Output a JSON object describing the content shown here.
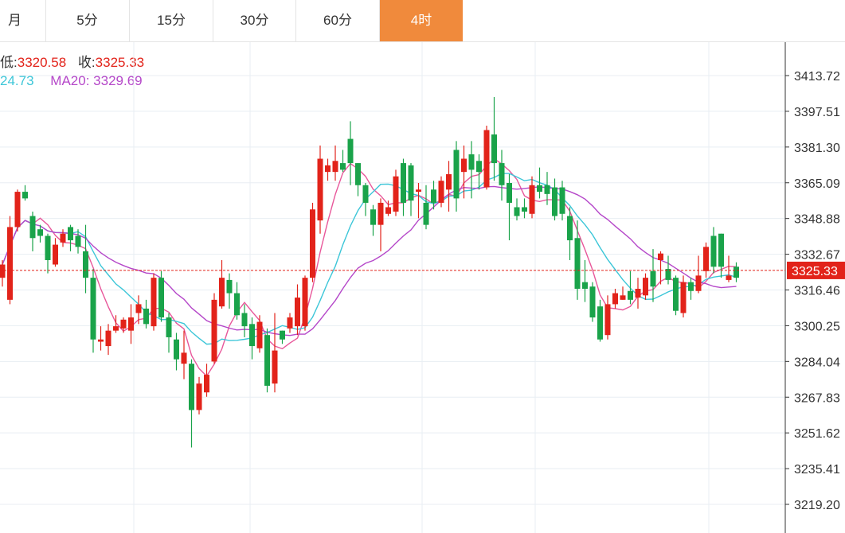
{
  "tabs": [
    {
      "label": "月",
      "active": false
    },
    {
      "label": "5分",
      "active": false
    },
    {
      "label": "15分",
      "active": false
    },
    {
      "label": "30分",
      "active": false
    },
    {
      "label": "60分",
      "active": false
    },
    {
      "label": "4时",
      "active": true
    }
  ],
  "info": {
    "low_label": "低:",
    "low_value": "3320.58",
    "close_label": "收:",
    "close_value": "3325.33",
    "ma10_value": "24.73",
    "ma20_label": "MA20:",
    "ma20_value": "3329.69"
  },
  "colors": {
    "up": "#e2231a",
    "down": "#1aa34a",
    "ma5": "#e8579a",
    "ma10": "#3cc6d8",
    "ma20": "#b547c9",
    "active_tab": "#f08a3c",
    "grid": "#e8eef3"
  },
  "chart_data": {
    "type": "candlestick",
    "y_ticks": [
      "3413.72",
      "3397.51",
      "3381.30",
      "3365.09",
      "3348.88",
      "3332.67",
      "3316.46",
      "3300.25",
      "3284.04",
      "3267.83",
      "3251.62",
      "3235.41",
      "3219.20"
    ],
    "y_range": [
      3219.2,
      3413.72
    ],
    "last_price": "3325.33",
    "candles": [
      [
        3322,
        3328,
        3318,
        3330
      ],
      [
        3312,
        3345,
        3310,
        3350
      ],
      [
        3345,
        3361,
        3343,
        3362
      ],
      [
        3361,
        3358,
        3357,
        3364
      ],
      [
        3350,
        3340,
        3334,
        3352
      ],
      [
        3344,
        3341,
        3338,
        3346
      ],
      [
        3341,
        3330,
        3324,
        3342
      ],
      [
        3328,
        3337,
        3327,
        3340
      ],
      [
        3338,
        3342,
        3336,
        3344
      ],
      [
        3345,
        3339,
        3334,
        3346
      ],
      [
        3341,
        3336,
        3333,
        3344
      ],
      [
        3334,
        3322,
        3315,
        3346
      ],
      [
        3322,
        3294,
        3288,
        3326
      ],
      [
        3293,
        3294,
        3289,
        3300
      ],
      [
        3291,
        3298,
        3287,
        3301
      ],
      [
        3298,
        3300,
        3297,
        3305
      ],
      [
        3299,
        3303,
        3297,
        3304
      ],
      [
        3298,
        3304,
        3292,
        3310
      ],
      [
        3306,
        3310,
        3301,
        3314
      ],
      [
        3308,
        3301,
        3299,
        3312
      ],
      [
        3300,
        3322,
        3298,
        3324
      ],
      [
        3322,
        3304,
        3302,
        3325
      ],
      [
        3304,
        3295,
        3288,
        3306
      ],
      [
        3294,
        3285,
        3280,
        3297
      ],
      [
        3283,
        3288,
        3276,
        3298
      ],
      [
        3283,
        3262,
        3245,
        3285
      ],
      [
        3262,
        3274,
        3260,
        3277
      ],
      [
        3270,
        3278,
        3268,
        3283
      ],
      [
        3284,
        3312,
        3283,
        3315
      ],
      [
        3309,
        3322,
        3308,
        3330
      ],
      [
        3321,
        3315,
        3308,
        3324
      ],
      [
        3315,
        3305,
        3303,
        3320
      ],
      [
        3306,
        3300,
        3295,
        3310
      ],
      [
        3301,
        3291,
        3285,
        3304
      ],
      [
        3290,
        3302,
        3288,
        3305
      ],
      [
        3296,
        3273,
        3270,
        3299
      ],
      [
        3274,
        3289,
        3270,
        3306
      ],
      [
        3298,
        3294,
        3292,
        3298
      ],
      [
        3299,
        3304,
        3297,
        3306
      ],
      [
        3300,
        3313,
        3296,
        3319
      ],
      [
        3300,
        3322,
        3298,
        3323
      ],
      [
        3322,
        3353,
        3320,
        3356
      ],
      [
        3348,
        3376,
        3342,
        3382
      ],
      [
        3370,
        3373,
        3366,
        3376
      ],
      [
        3370,
        3375,
        3366,
        3382
      ],
      [
        3374,
        3371,
        3370,
        3380
      ],
      [
        3385,
        3374,
        3364,
        3393
      ],
      [
        3374,
        3364,
        3359,
        3374
      ],
      [
        3364,
        3356,
        3350,
        3365
      ],
      [
        3353,
        3346,
        3341,
        3355
      ],
      [
        3346,
        3356,
        3334,
        3358
      ],
      [
        3351,
        3354,
        3350,
        3357
      ],
      [
        3352,
        3368,
        3350,
        3371
      ],
      [
        3374,
        3356,
        3350,
        3376
      ],
      [
        3373,
        3357,
        3350,
        3374
      ],
      [
        3361,
        3362,
        3349,
        3365
      ],
      [
        3356,
        3346,
        3344,
        3364
      ],
      [
        3362,
        3356,
        3353,
        3366
      ],
      [
        3356,
        3366,
        3354,
        3368
      ],
      [
        3362,
        3369,
        3352,
        3375
      ],
      [
        3380,
        3358,
        3352,
        3384
      ],
      [
        3370,
        3376,
        3358,
        3382
      ],
      [
        3378,
        3371,
        3358,
        3384
      ],
      [
        3375,
        3370,
        3362,
        3378
      ],
      [
        3363,
        3389,
        3362,
        3391
      ],
      [
        3387,
        3374,
        3366,
        3404
      ],
      [
        3374,
        3364,
        3357,
        3380
      ],
      [
        3365,
        3356,
        3339,
        3369
      ],
      [
        3354,
        3350,
        3348,
        3358
      ],
      [
        3354,
        3352,
        3349,
        3358
      ],
      [
        3351,
        3364,
        3349,
        3368
      ],
      [
        3364,
        3361,
        3358,
        3372
      ],
      [
        3364,
        3360,
        3355,
        3370
      ],
      [
        3363,
        3350,
        3348,
        3367
      ],
      [
        3363,
        3351,
        3348,
        3366
      ],
      [
        3350,
        3339,
        3330,
        3354
      ],
      [
        3340,
        3317,
        3312,
        3348
      ],
      [
        3320,
        3317,
        3311,
        3330
      ],
      [
        3318,
        3304,
        3302,
        3320
      ],
      [
        3309,
        3294,
        3293,
        3312
      ],
      [
        3296,
        3310,
        3294,
        3314
      ],
      [
        3310,
        3315,
        3308,
        3317
      ],
      [
        3312,
        3314,
        3312,
        3318
      ],
      [
        3316,
        3312,
        3310,
        3325
      ],
      [
        3313,
        3317,
        3308,
        3322
      ],
      [
        3314,
        3322,
        3312,
        3324
      ],
      [
        3325,
        3318,
        3311,
        3335
      ],
      [
        3330,
        3333,
        3319,
        3334
      ],
      [
        3326,
        3321,
        3319,
        3332
      ],
      [
        3322,
        3307,
        3305,
        3323
      ],
      [
        3306,
        3320,
        3304,
        3323
      ],
      [
        3320,
        3316,
        3312,
        3322
      ],
      [
        3316,
        3323,
        3315,
        3332
      ],
      [
        3325,
        3336,
        3322,
        3338
      ],
      [
        3341,
        3327,
        3324,
        3345
      ],
      [
        3342,
        3327,
        3322,
        3342
      ],
      [
        3321,
        3323,
        3320,
        3332
      ],
      [
        3327,
        3322,
        3320,
        3329
      ]
    ]
  }
}
